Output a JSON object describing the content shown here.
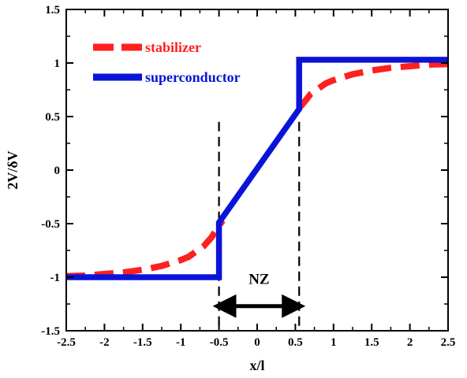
{
  "chart_data": {
    "type": "line",
    "xlabel": "x/l",
    "ylabel": "2V/δV",
    "xlim": [
      -2.5,
      2.5
    ],
    "ylim": [
      -1.5,
      1.5
    ],
    "x_ticks": [
      -2.5,
      -2,
      -1.5,
      -1,
      -0.5,
      0,
      0.5,
      1,
      1.5,
      2,
      2.5
    ],
    "x_tick_labels": [
      "-2.5",
      "-2",
      "-1.5",
      "-1",
      "-0.5",
      "0",
      "0.5",
      "1",
      "1.5",
      "2",
      "2.5"
    ],
    "y_ticks": [
      -1.5,
      -1,
      -0.5,
      0,
      0.5,
      1,
      1.5
    ],
    "y_tick_labels": [
      "-1.5",
      "-1",
      "-0.5",
      "0",
      "0.5",
      "1",
      "1.5"
    ],
    "grid": false,
    "legend_position": "top-left",
    "series": [
      {
        "name": "stabilizer",
        "color": "#ff2020",
        "style": "dashed",
        "x": [
          -2.5,
          -2.25,
          -2.0,
          -1.75,
          -1.5,
          -1.25,
          -1.0,
          -0.9,
          -0.8,
          -0.7,
          -0.6,
          -0.5,
          -0.45
        ],
        "y": [
          -0.99,
          -0.985,
          -0.97,
          -0.955,
          -0.93,
          -0.895,
          -0.84,
          -0.81,
          -0.76,
          -0.71,
          -0.63,
          -0.52,
          -0.47
        ]
      },
      {
        "name": "superconductor",
        "color": "#0a14d8",
        "style": "solid",
        "x": [
          -2.5,
          -0.5,
          -0.5,
          0.55,
          0.55,
          2.5
        ],
        "y": [
          -1.0,
          -1.0,
          -0.49,
          0.57,
          1.03,
          1.03
        ]
      },
      {
        "name": "stabilizer",
        "color": "#ff2020",
        "style": "dashed",
        "x": [
          0.55,
          0.6,
          0.7,
          0.8,
          0.9,
          1.0,
          1.25,
          1.5,
          1.75,
          2.0,
          2.25,
          2.5
        ],
        "y": [
          0.58,
          0.62,
          0.71,
          0.76,
          0.81,
          0.84,
          0.895,
          0.93,
          0.955,
          0.97,
          0.985,
          0.99
        ]
      }
    ],
    "markers": [
      {
        "x": -0.5,
        "style": "dashed"
      },
      {
        "x": 0.55,
        "style": "dashed"
      }
    ],
    "annotation": {
      "text": "NZ",
      "arrow_from": -0.5,
      "arrow_to": 0.55,
      "y": -1.27
    }
  }
}
